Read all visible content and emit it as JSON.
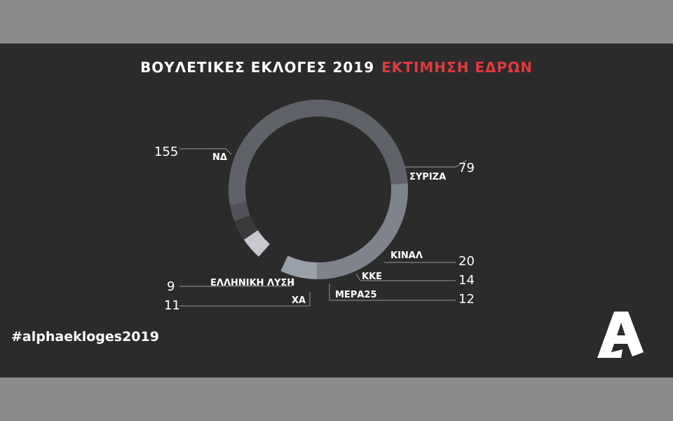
{
  "title": {
    "main": "ΒΟΥΛΕΤΙΚΕΣ ΕΚΛΟΓΕΣ 2019",
    "highlight": "ΕΚΤΙΜΗΣΗ ΕΔΡΩΝ"
  },
  "hashtag": "#alphaekloges2019",
  "logo": {
    "name": "alpha-logo-icon",
    "color": "#ffffff"
  },
  "colors": {
    "background": "#2b2b2b",
    "frame": "#8a8a8a",
    "title": "#ffffff",
    "accent": "#e03a3e",
    "label": "#ffffff",
    "leader": "#9a9a9a"
  },
  "chart_data": {
    "type": "pie",
    "style": "donut",
    "total": 300,
    "slices": [
      {
        "name": "ΝΔ",
        "value": 155,
        "color": "#5f6268"
      },
      {
        "name": "ΣΥΡΙΖΑ",
        "value": 79,
        "color": "#7e838c"
      },
      {
        "name": "ΚΙΝΑΛ",
        "value": 20,
        "color": "#9aa0a9"
      },
      {
        "name": "ΚΚΕ",
        "value": 14,
        "color": "#2b2b2b"
      },
      {
        "name": "ΜΕΡΑ25",
        "value": 12,
        "color": "#c8c8cf"
      },
      {
        "name": "ΧΑ",
        "value": 11,
        "color": "#3b3b3d"
      },
      {
        "name": "ΕΛΛΗΝΙΚΗ ΛΥΣΗ",
        "value": 9,
        "color": "#515359"
      }
    ]
  }
}
